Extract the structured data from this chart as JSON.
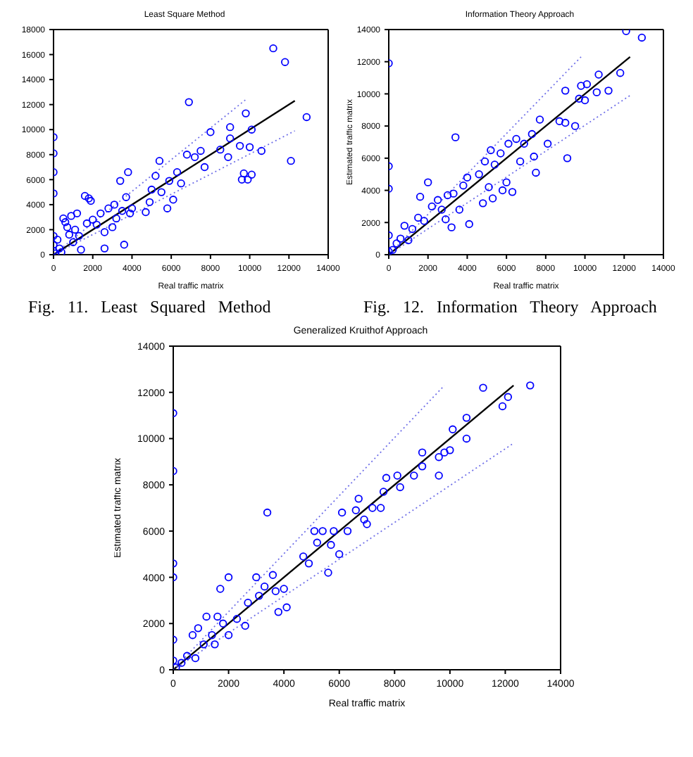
{
  "chart_data": [
    {
      "type": "scatter",
      "title": "Least Square Method",
      "xlabel": "Real traffic matrix",
      "xlim": [
        0,
        14000
      ],
      "xticks": [
        0,
        2000,
        4000,
        6000,
        8000,
        10000,
        12000,
        14000
      ],
      "ylim": [
        0,
        18000
      ],
      "yticks": [
        0,
        2000,
        4000,
        6000,
        8000,
        10000,
        12000,
        14000,
        16000,
        18000
      ],
      "grid": false,
      "annotations": [
        "Fig. 11. Least Squared Method"
      ],
      "series": [
        {
          "marker": "circle",
          "color": "#0000ff",
          "x": [
            0,
            0,
            0,
            0,
            0,
            0,
            0,
            100,
            200,
            300,
            400,
            500,
            600,
            700,
            800,
            900,
            1000,
            1100,
            1200,
            1300,
            1400,
            1600,
            1700,
            1800,
            1900,
            2000,
            2200,
            2400,
            2600,
            2600,
            2800,
            3000,
            3100,
            3200,
            3400,
            3500,
            3600,
            3700,
            3800,
            3900,
            4000,
            4700,
            4900,
            5000,
            5200,
            5400,
            5500,
            5800,
            5900,
            6100,
            6300,
            6500,
            6800,
            6900,
            7200,
            7500,
            7700,
            8000,
            8500,
            8900,
            9000,
            9000,
            9500,
            9600,
            9700,
            9800,
            9900,
            10000,
            10100,
            10100,
            10600,
            11200,
            11800,
            12100,
            12900
          ],
          "values": [
            9400,
            8100,
            6600,
            4900,
            1500,
            800,
            300,
            100,
            1200,
            500,
            200,
            2900,
            2600,
            2200,
            1600,
            3100,
            1000,
            2000,
            3300,
            1500,
            400,
            4700,
            2500,
            4500,
            4300,
            2800,
            2400,
            3300,
            500,
            1800,
            3700,
            2200,
            4000,
            2900,
            5900,
            3500,
            800,
            4600,
            6600,
            3300,
            3700,
            3400,
            4200,
            5200,
            6300,
            7500,
            5000,
            3700,
            5900,
            4400,
            6600,
            5700,
            8000,
            12200,
            7800,
            8300,
            7000,
            9800,
            8400,
            7800,
            10200,
            9300,
            8700,
            6000,
            6500,
            11300,
            6000,
            8600,
            6400,
            10000,
            8300,
            16500,
            15400,
            7500,
            11000
          ]
        },
        {
          "type": "line",
          "line_style": "solid",
          "color": "#000000",
          "x": [
            0,
            12300
          ],
          "values": [
            0,
            12300
          ]
        },
        {
          "type": "line",
          "line_style": "dotted",
          "color": "#6f6fe8",
          "x": [
            0,
            9800
          ],
          "values": [
            0,
            12400
          ]
        },
        {
          "type": "line",
          "line_style": "dotted",
          "color": "#6f6fe8",
          "x": [
            0,
            12300
          ],
          "values": [
            0,
            9900
          ]
        }
      ]
    },
    {
      "type": "scatter",
      "title": "Information Theory Approach",
      "xlabel": "Real traffic matrix",
      "ylabel": "Estimated traffic matrix",
      "xlim": [
        0,
        14000
      ],
      "xticks": [
        0,
        2000,
        4000,
        6000,
        8000,
        10000,
        12000,
        14000
      ],
      "ylim": [
        0,
        14000
      ],
      "yticks": [
        0,
        2000,
        4000,
        6000,
        8000,
        10000,
        12000,
        14000
      ],
      "grid": false,
      "annotations": [
        "Fig. 12. Information Theory Approach"
      ],
      "series": [
        {
          "marker": "circle",
          "color": "#0000ff",
          "x": [
            0,
            0,
            0,
            0,
            0,
            200,
            400,
            600,
            800,
            1000,
            1200,
            1500,
            1600,
            1800,
            2000,
            2200,
            2500,
            2700,
            2900,
            3000,
            3200,
            3300,
            3400,
            3600,
            3800,
            4000,
            4100,
            4600,
            4800,
            4900,
            5100,
            5200,
            5300,
            5400,
            5700,
            5800,
            6000,
            6100,
            6300,
            6500,
            6700,
            6900,
            7300,
            7400,
            7500,
            7700,
            8100,
            8700,
            9000,
            9000,
            9100,
            9500,
            9700,
            9800,
            10000,
            10100,
            10600,
            10700,
            11200,
            11800,
            12100,
            12900
          ],
          "values": [
            11900,
            5500,
            4100,
            1200,
            200,
            300,
            700,
            1000,
            1800,
            900,
            1600,
            2300,
            3600,
            2100,
            4500,
            3000,
            3400,
            2800,
            2200,
            3700,
            1700,
            3800,
            7300,
            2800,
            4300,
            4800,
            1900,
            5000,
            3200,
            5800,
            4200,
            6500,
            3500,
            5600,
            6300,
            4000,
            4500,
            6900,
            3900,
            7200,
            5800,
            6900,
            7500,
            6100,
            5100,
            8400,
            6900,
            8300,
            8200,
            10200,
            6000,
            8000,
            9700,
            10500,
            9600,
            10600,
            10100,
            11200,
            10200,
            11300,
            13900,
            13500
          ]
        },
        {
          "type": "line",
          "line_style": "solid",
          "color": "#000000",
          "x": [
            0,
            12300
          ],
          "values": [
            0,
            12300
          ]
        },
        {
          "type": "line",
          "line_style": "dotted",
          "color": "#6f6fe8",
          "x": [
            0,
            9800
          ],
          "values": [
            0,
            12300
          ]
        },
        {
          "type": "line",
          "line_style": "dotted",
          "color": "#6f6fe8",
          "x": [
            0,
            12300
          ],
          "values": [
            0,
            9900
          ]
        }
      ]
    },
    {
      "type": "scatter",
      "title": "Generalized Kruithof Approach",
      "xlabel": "Real traffic matrix",
      "ylabel": "Estimated traffic matrix",
      "xlim": [
        0,
        14000
      ],
      "xticks": [
        0,
        2000,
        4000,
        6000,
        8000,
        10000,
        12000,
        14000
      ],
      "ylim": [
        0,
        14000
      ],
      "yticks": [
        0,
        2000,
        4000,
        6000,
        8000,
        10000,
        12000,
        14000
      ],
      "grid": false,
      "series": [
        {
          "marker": "circle",
          "color": "#0000ff",
          "x": [
            0,
            0,
            0,
            0,
            0,
            0,
            100,
            300,
            500,
            700,
            800,
            900,
            1100,
            1200,
            1400,
            1500,
            1600,
            1700,
            1800,
            2000,
            2000,
            2300,
            2600,
            2700,
            3000,
            3100,
            3300,
            3400,
            3600,
            3700,
            3800,
            4000,
            4100,
            4700,
            4900,
            5100,
            5200,
            5400,
            5600,
            5700,
            5800,
            6000,
            6100,
            6300,
            6600,
            6700,
            6900,
            7000,
            7200,
            7500,
            7600,
            7700,
            8100,
            8200,
            8700,
            9000,
            9000,
            9600,
            9600,
            9800,
            10000,
            10100,
            10600,
            10600,
            11200,
            11900,
            12100,
            12900
          ],
          "values": [
            11100,
            8600,
            4600,
            4000,
            1300,
            400,
            100,
            300,
            600,
            1500,
            500,
            1800,
            1100,
            2300,
            1500,
            1100,
            2300,
            3500,
            2000,
            4000,
            1500,
            2200,
            1900,
            2900,
            4000,
            3200,
            3600,
            6800,
            4100,
            3400,
            2500,
            3500,
            2700,
            4900,
            4600,
            6000,
            5500,
            6000,
            4200,
            5400,
            6000,
            5000,
            6800,
            6000,
            6900,
            7400,
            6500,
            6300,
            7000,
            7000,
            7700,
            8300,
            8400,
            7900,
            8400,
            8800,
            9400,
            8400,
            9200,
            9400,
            9500,
            10400,
            10000,
            10900,
            12200,
            11400,
            11800,
            12300
          ]
        },
        {
          "type": "line",
          "line_style": "solid",
          "color": "#000000",
          "x": [
            0,
            12300
          ],
          "values": [
            0,
            12300
          ]
        },
        {
          "type": "line",
          "line_style": "dotted",
          "color": "#6f6fe8",
          "x": [
            0,
            9800
          ],
          "values": [
            0,
            12300
          ]
        },
        {
          "type": "line",
          "line_style": "dotted",
          "color": "#6f6fe8",
          "x": [
            0,
            12300
          ],
          "values": [
            0,
            9800
          ]
        }
      ]
    }
  ]
}
